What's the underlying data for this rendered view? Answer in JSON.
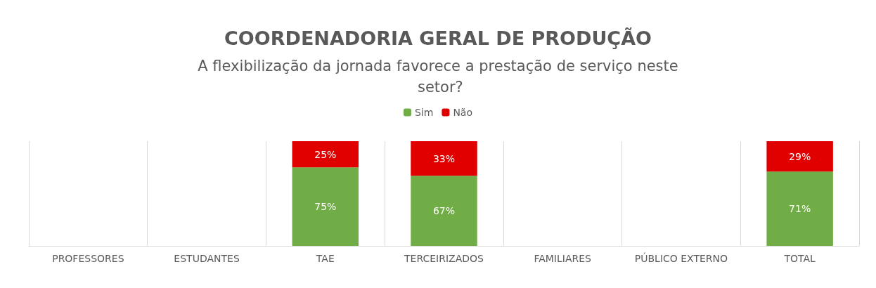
{
  "chart_data": {
    "type": "bar",
    "title": "COORDENADORIA GERAL DE PRODUÇÃO",
    "subtitle": "A flexibilização da jornada favorece a prestação de serviço neste setor?",
    "categories": [
      "PROFESSORES",
      "ESTUDANTES",
      "TAE",
      "TERCEIRIZADOS",
      "FAMILIARES",
      "PÚBLICO EXTERNO",
      "TOTAL"
    ],
    "stacked": true,
    "grid": "x",
    "legend": "top",
    "data_labels": true,
    "series": [
      {
        "name": "Sim",
        "color": "#70ad47",
        "values": [
          null,
          null,
          75,
          67,
          null,
          null,
          71
        ],
        "value_labels": [
          null,
          null,
          "75%",
          "67%",
          null,
          null,
          "71%"
        ]
      },
      {
        "name": "Não",
        "color": "#e00000",
        "values": [
          null,
          null,
          25,
          33,
          null,
          null,
          29
        ],
        "value_labels": [
          null,
          null,
          "25%",
          "33%",
          null,
          null,
          "29%"
        ]
      }
    ]
  }
}
